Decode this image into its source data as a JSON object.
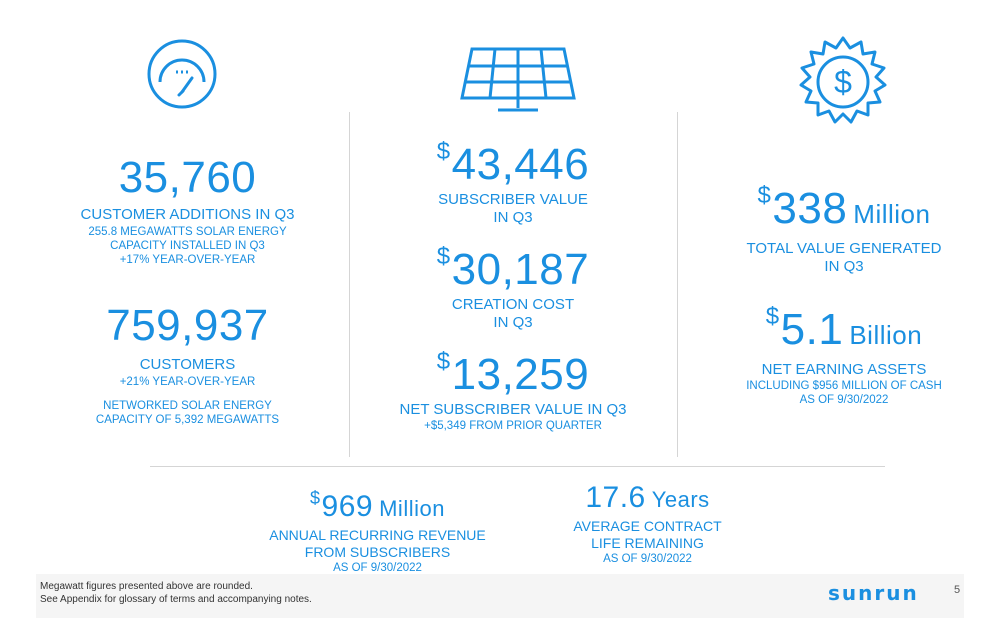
{
  "left": {
    "stat1": {
      "value": "35,760",
      "label": "CUSTOMER ADDITIONS IN Q3",
      "sub": [
        "255.8 MEGAWATTS SOLAR ENERGY",
        "CAPACITY INSTALLED IN Q3",
        "+17% YEAR-OVER-YEAR"
      ]
    },
    "stat2": {
      "value": "759,937",
      "label": "CUSTOMERS",
      "sub1": "+21% YEAR-OVER-YEAR",
      "sub2": [
        "NETWORKED SOLAR ENERGY",
        "CAPACITY OF 5,392 MEGAWATTS"
      ]
    }
  },
  "middle": {
    "stat1": {
      "currency": "$",
      "value": "43,446",
      "label": [
        "SUBSCRIBER VALUE",
        "IN Q3"
      ]
    },
    "stat2": {
      "currency": "$",
      "value": "30,187",
      "label": [
        "CREATION COST",
        "IN Q3"
      ]
    },
    "stat3": {
      "currency": "$",
      "value": "13,259",
      "label": "NET SUBSCRIBER VALUE IN Q3",
      "sub": "+$5,349 FROM PRIOR QUARTER"
    }
  },
  "right": {
    "stat1": {
      "currency": "$",
      "value": "338",
      "unit": "Million",
      "label": [
        "TOTAL VALUE GENERATED",
        "IN Q3"
      ]
    },
    "stat2": {
      "currency": "$",
      "value": "5.1",
      "unit": "Billion",
      "label": "NET EARNING ASSETS",
      "sub": [
        "INCLUDING $956 MILLION OF CASH",
        "AS OF 9/30/2022"
      ]
    }
  },
  "bottom": {
    "stat1": {
      "currency": "$",
      "value": "969",
      "unit": "Million",
      "label": [
        "ANNUAL RECURRING REVENUE",
        "FROM SUBSCRIBERS"
      ],
      "sub": "AS OF 9/30/2022"
    },
    "stat2": {
      "value": "17.6",
      "unit": "Years",
      "label": [
        "AVERAGE CONTRACT",
        "LIFE REMAINING"
      ],
      "sub": "AS OF 9/30/2022"
    }
  },
  "footer": {
    "note1": "Megawatt figures presented above are rounded.",
    "note2": "See Appendix for glossary of terms and accompanying notes.",
    "logo": "sunrun",
    "page": "5"
  },
  "icons": {
    "left": "gauge-icon",
    "middle": "solar-panel-icon",
    "right": "dollar-badge-icon"
  },
  "colors": {
    "accent": "#1a8fe0",
    "divider": "#d5d5d5"
  }
}
